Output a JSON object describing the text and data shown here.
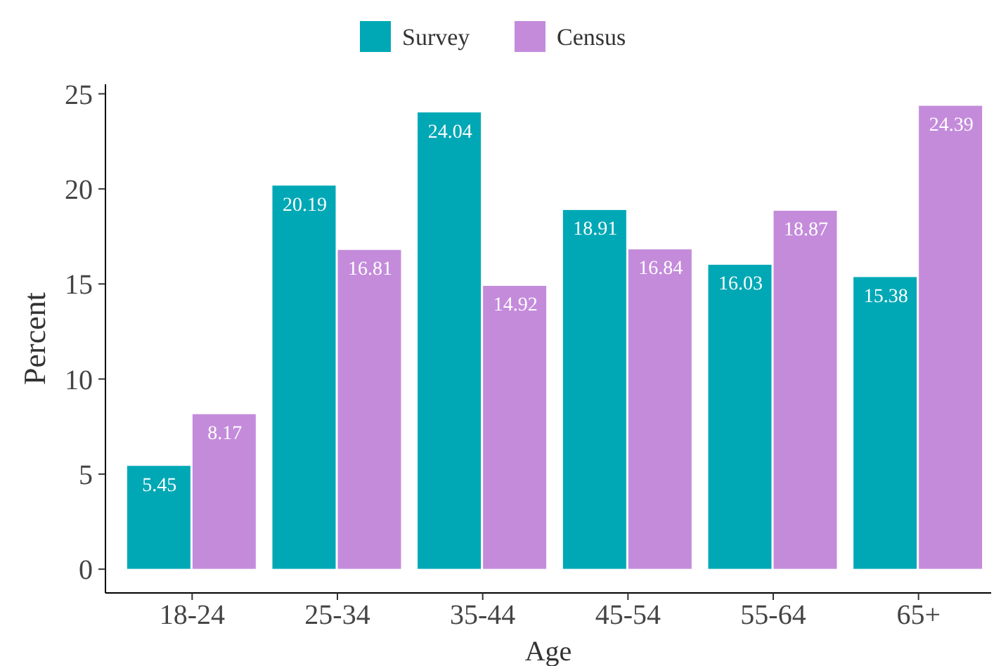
{
  "chart_data": {
    "type": "bar",
    "xlabel": "Age",
    "ylabel": "Percent",
    "categories": [
      "18-24",
      "25-34",
      "35-44",
      "45-54",
      "55-64",
      "65+"
    ],
    "series": [
      {
        "name": "Survey",
        "color": "#00a8b5",
        "values": [
          5.45,
          20.19,
          24.04,
          18.91,
          16.03,
          15.38
        ]
      },
      {
        "name": "Census",
        "color": "#c48bdb",
        "values": [
          8.17,
          16.81,
          14.92,
          16.84,
          18.87,
          24.39
        ]
      }
    ],
    "ylim": [
      -1.25,
      25.5
    ],
    "yticks": [
      0,
      5,
      10,
      15,
      20,
      25
    ],
    "data_labels": true,
    "legend": "top",
    "grid": false
  }
}
